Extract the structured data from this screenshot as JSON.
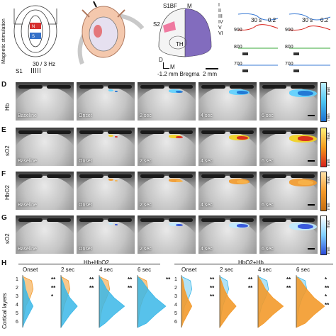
{
  "panel_top": {
    "magnetic_label": "Magnetic stimulation",
    "s1_label": "S1",
    "stim_label": "30 / 3 Hz",
    "atlas_labels": [
      "S1BF",
      "M",
      "S2",
      "TH"
    ],
    "layer_labels": [
      "I",
      "II",
      "III",
      "IV",
      "V",
      "VI"
    ],
    "compass": [
      "D",
      "M"
    ],
    "bregma": "-1.2 mm Bregma",
    "scale_mm": "2 mm",
    "trace_scale_time": "30 s",
    "trace_scale_amp": "0.2",
    "trace_ticks": [
      "900",
      "800",
      "700"
    ]
  },
  "rows": [
    {
      "letter": "D",
      "label": "Hb",
      "cmap": "blue",
      "colorbar": [
        "max",
        "min"
      ]
    },
    {
      "letter": "E",
      "label": "sO2",
      "cmap": "red",
      "colorbar": [
        "max",
        "min"
      ]
    },
    {
      "letter": "F",
      "label": "HbO2",
      "cmap": "orange",
      "colorbar": [
        "max",
        "min"
      ]
    },
    {
      "letter": "G",
      "label": "sO2",
      "cmap": "bluewhite",
      "colorbar": [
        "max",
        "min"
      ]
    }
  ],
  "frame_captions": [
    "Baseline",
    "Onset",
    "2 sec",
    "4 sec",
    "6 sec"
  ],
  "panel_h": {
    "letter": "H",
    "group_left": "Hb+HbO2",
    "group_right": "HbO2+Hb",
    "ylabel": "Cortical layers",
    "yticks": [
      "1",
      "2",
      "3",
      "4",
      "5",
      "6"
    ],
    "time_labels": [
      "Onset",
      "2 sec",
      "4 sec",
      "6 sec"
    ],
    "sig_left": [
      [
        "**",
        "**",
        "*"
      ],
      [
        "**",
        "**"
      ],
      [
        "**",
        "**"
      ],
      [
        "**"
      ]
    ],
    "sig_right": [
      [
        "**",
        "**",
        "**"
      ],
      [
        "**",
        "**"
      ],
      [
        "**",
        "**"
      ],
      [
        "*",
        "**",
        "*",
        "**"
      ]
    ]
  },
  "colors": {
    "hb": "#3ab7e8",
    "hbo2": "#f39a2b",
    "so2_red": "#d8221c",
    "so2_yellow": "#f3d21c",
    "so2_blue": "#2a4ad8"
  }
}
